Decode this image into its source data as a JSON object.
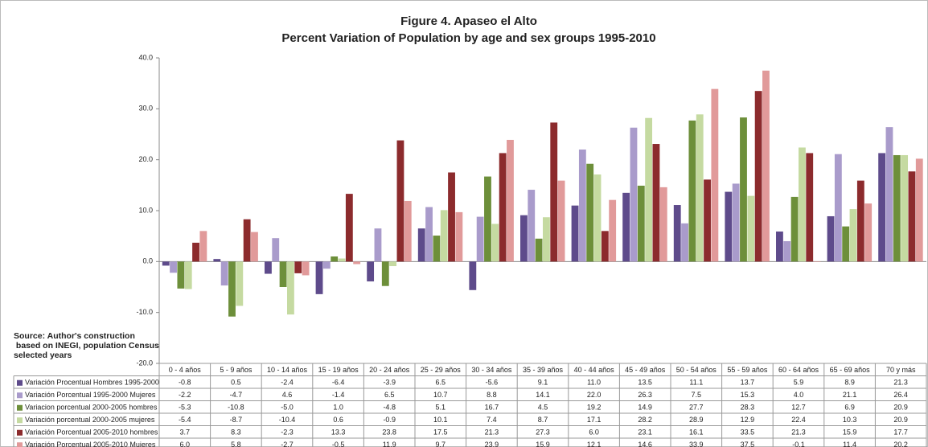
{
  "chart_data": {
    "type": "bar",
    "title": "Figure 4. Apaseo el Alto",
    "subtitle": "Percent Variation of Population by age and sex groups 1995-2010",
    "source": [
      "Source: Author's construction",
      " based on INEGI, population Census",
      "selected years"
    ],
    "categories": [
      "0 - 4 años",
      "5 - 9 años",
      "10 - 14 años",
      "15 - 19 años",
      "20 - 24 años",
      "25 - 29 años",
      "30 - 34 años",
      "35 - 39 años",
      "40 - 44 años",
      "45 - 49 años",
      "50 - 54 años",
      "55 - 59 años",
      "60 - 64 años",
      "65 - 69 años",
      "70 y más"
    ],
    "series": [
      {
        "name": "Variación Procentual Hombres 1995-2000",
        "color": "#5e4b8b",
        "values": [
          -0.8,
          0.5,
          -2.4,
          -6.4,
          -3.9,
          6.5,
          -5.6,
          9.1,
          11.0,
          13.5,
          11.1,
          13.7,
          5.9,
          8.9,
          21.3
        ],
        "value_labels": [
          "-0.8",
          "0.5",
          "-2.4",
          "-6.4",
          "-3.9",
          "6.5",
          "-5.6",
          "9.1",
          "11.0",
          "13.5",
          "11.1",
          "13.7",
          "5.9",
          "8.9",
          "21.3"
        ]
      },
      {
        "name": "Variación Porcentual 1995-2000 Mujeres",
        "color": "#a99bcb",
        "values": [
          -2.2,
          -4.7,
          4.6,
          -1.4,
          6.5,
          10.7,
          8.8,
          14.1,
          22.0,
          26.3,
          7.5,
          15.3,
          4.0,
          21.1,
          26.4
        ],
        "value_labels": [
          "-2.2",
          "-4.7",
          "4.6",
          "-1.4",
          "6.5",
          "10.7",
          "8.8",
          "14.1",
          "22.0",
          "26.3",
          "7.5",
          "15.3",
          "4.0",
          "21.1",
          "26.4"
        ]
      },
      {
        "name": "Variacion porcentual 2000-2005 hombres",
        "color": "#6d8f3a",
        "values": [
          -5.3,
          -10.8,
          -5.0,
          1.0,
          -4.8,
          5.1,
          16.7,
          4.5,
          19.2,
          14.9,
          27.7,
          28.3,
          12.7,
          6.9,
          20.9
        ],
        "value_labels": [
          "-5.3",
          "-10.8",
          "-5.0",
          "1.0",
          "-4.8",
          "5.1",
          "16.7",
          "4.5",
          "19.2",
          "14.9",
          "27.7",
          "28.3",
          "12.7",
          "6.9",
          "20.9"
        ]
      },
      {
        "name": "Variación porcentual 2000-2005 mujeres",
        "color": "#c5daa1",
        "values": [
          -5.4,
          -8.7,
          -10.4,
          0.6,
          -0.9,
          10.1,
          7.4,
          8.7,
          17.1,
          28.2,
          28.9,
          12.9,
          22.4,
          10.3,
          20.9
        ],
        "value_labels": [
          "-5.4",
          "-8.7",
          "-10.4",
          "0.6",
          "-0.9",
          "10.1",
          "7.4",
          "8.7",
          "17.1",
          "28.2",
          "28.9",
          "12.9",
          "22.4",
          "10.3",
          "20.9"
        ]
      },
      {
        "name": "Variación Porcentual 2005-2010 hombres",
        "color": "#8c2b2d",
        "values": [
          3.7,
          8.3,
          -2.3,
          13.3,
          23.8,
          17.5,
          21.3,
          27.3,
          6.0,
          23.1,
          16.1,
          33.5,
          21.3,
          15.9,
          17.7
        ],
        "value_labels": [
          "3.7",
          "8.3",
          "-2.3",
          "13.3",
          "23.8",
          "17.5",
          "21.3",
          "27.3",
          "6.0",
          "23.1",
          "16.1",
          "33.5",
          "21.3",
          "15.9",
          "17.7"
        ]
      },
      {
        "name": "Variación Porcentual 2005-2010 Mujeres",
        "color": "#e19a9a",
        "values": [
          6.0,
          5.8,
          -2.7,
          -0.5,
          11.9,
          9.7,
          23.9,
          15.9,
          12.1,
          14.6,
          33.9,
          37.5,
          -0.1,
          11.4,
          20.2
        ],
        "value_labels": [
          "6.0",
          "5.8",
          "-2.7",
          "-0.5",
          "11.9",
          "9.7",
          "23.9",
          "15.9",
          "12.1",
          "14.6",
          "33.9",
          "37.5",
          "-0.1",
          "11.4",
          "20.2"
        ]
      }
    ],
    "ylim": [
      -20,
      40
    ],
    "yticks": [
      {
        "value": -20,
        "label": "-20.0"
      },
      {
        "value": -10,
        "label": "-10.0"
      },
      {
        "value": 0,
        "label": "0.0"
      },
      {
        "value": 10,
        "label": "10.0"
      },
      {
        "value": 20,
        "label": "20.0"
      },
      {
        "value": 30,
        "label": "30.0"
      },
      {
        "value": 40,
        "label": "40.0"
      }
    ],
    "grid": false
  }
}
